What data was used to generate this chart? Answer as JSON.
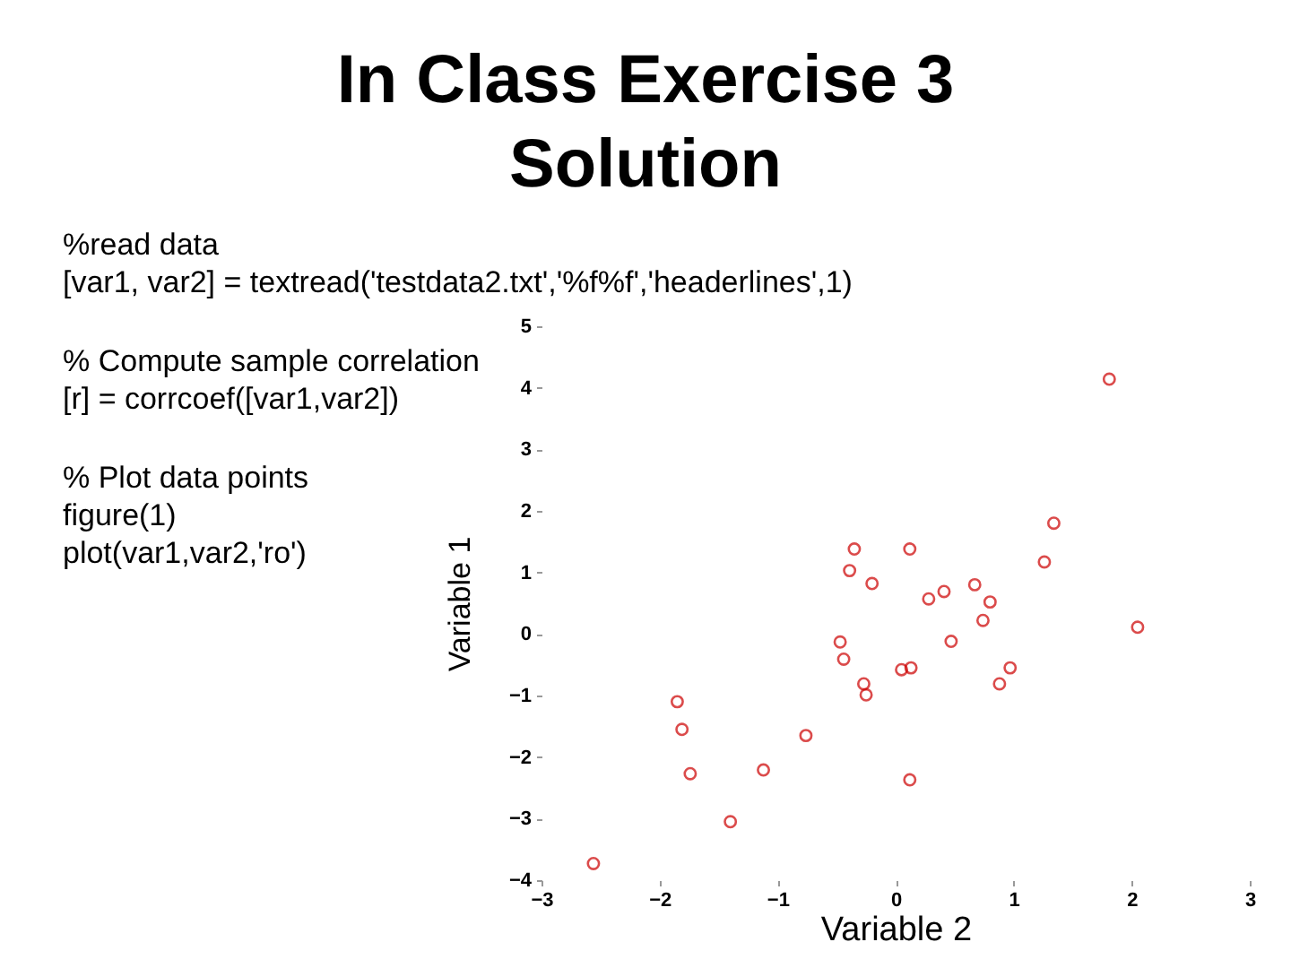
{
  "chart_data": {
    "type": "scatter",
    "title": "In Class Exercise 3\nSolution",
    "xlabel": "Variable 2",
    "ylabel": "Variable 1",
    "annotations": [
      "%read data\n[var1, var2] = textread('testdata2.txt','%f%f','headerlines',1)",
      "% Compute sample correlation\n[r] = corrcoef([var1,var2])",
      "% Plot data points\nfigure(1)\nplot(var1,var2,'ro')"
    ],
    "x": [
      1.81,
      1.34,
      -0.35,
      0.12,
      -0.39,
      1.26,
      -0.2,
      0.28,
      0.41,
      0.67,
      0.8,
      0.74,
      2.05,
      0.47,
      -0.47,
      -0.44,
      -0.27,
      -0.25,
      -1.85,
      -1.81,
      -0.76,
      -1.74,
      -1.12,
      -1.4,
      -2.56,
      0.05,
      0.13,
      0.97,
      0.88,
      0.12
    ],
    "values": [
      4.14,
      1.8,
      1.38,
      1.38,
      1.03,
      1.17,
      0.82,
      0.57,
      0.69,
      0.8,
      0.52,
      0.22,
      0.11,
      -0.12,
      -0.13,
      -0.41,
      -0.81,
      -0.99,
      -1.1,
      -1.55,
      -1.65,
      -2.27,
      -2.21,
      -3.05,
      -3.73,
      -0.58,
      -0.55,
      -0.55,
      -0.81,
      -2.37
    ],
    "color": "#cc0000",
    "marker": "circle",
    "xlim": [
      -3,
      3
    ],
    "ylim": [
      -4,
      5
    ],
    "xticks": [
      -3,
      -2,
      -1,
      0,
      1,
      2,
      3
    ],
    "yticks": [
      -4,
      -3,
      -2,
      -1,
      0,
      1,
      2,
      3,
      4,
      5
    ]
  }
}
